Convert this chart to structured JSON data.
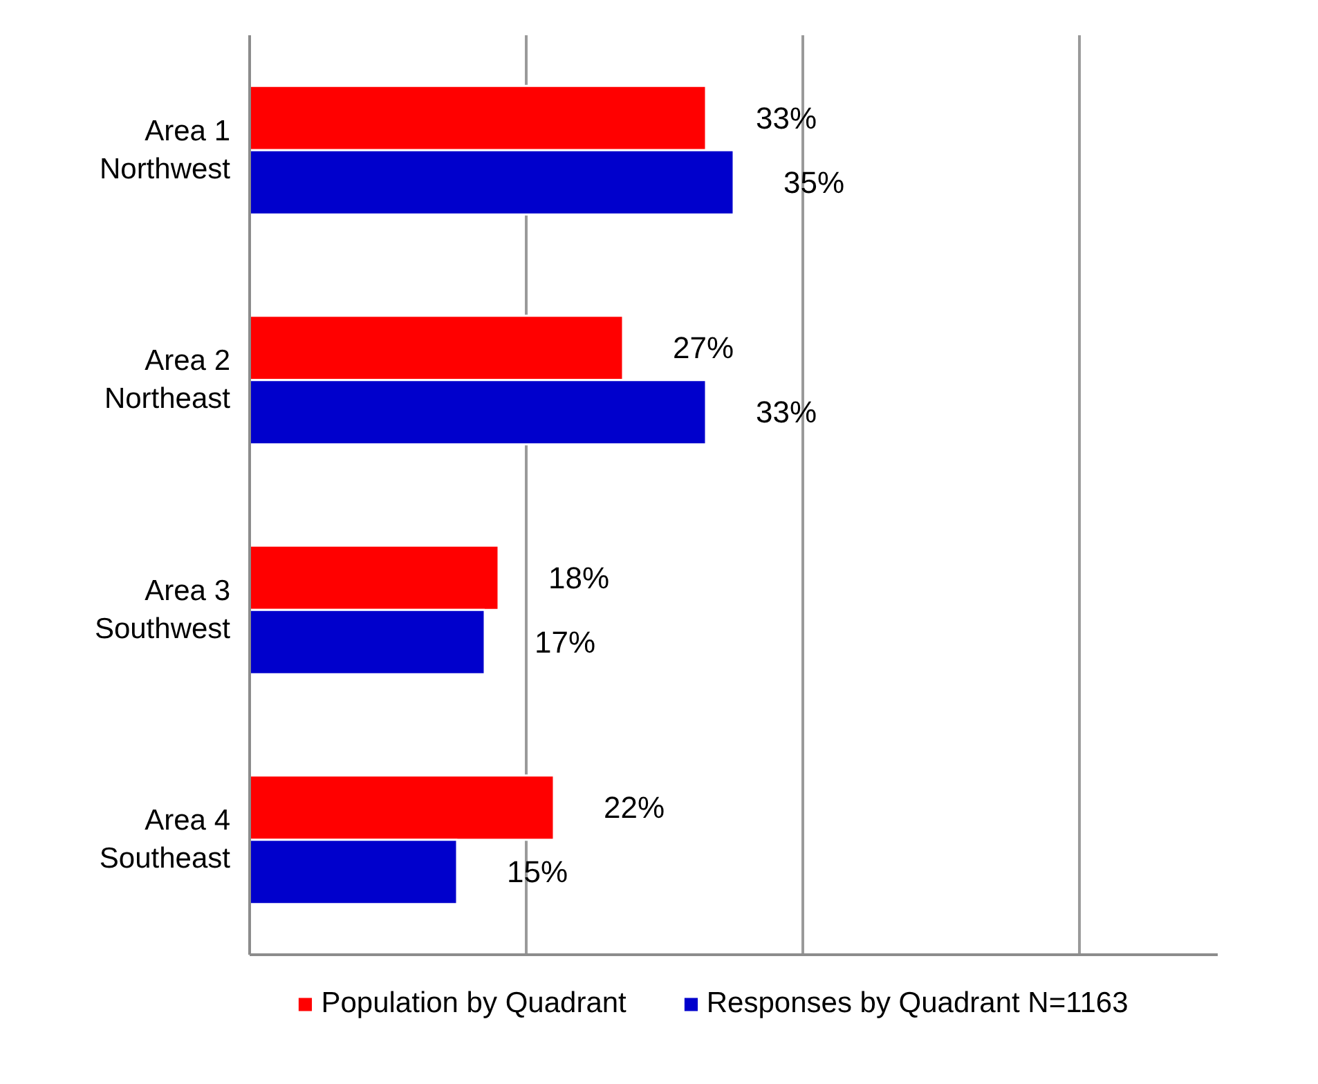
{
  "chart_data": {
    "type": "bar",
    "orientation": "horizontal",
    "categories": [
      "Area 1\nNorthwest",
      "Area 2\nNortheast",
      "Area 3\nSouthwest",
      "Area 4\nSoutheast"
    ],
    "series": [
      {
        "name": "Population by Quadrant",
        "color": "#ff0000",
        "values": [
          33,
          27,
          18,
          22
        ],
        "value_labels": [
          "33%",
          "27%",
          "18%",
          "22%"
        ]
      },
      {
        "name": "Responses by Quadrant N=1163",
        "color": "#0000cc",
        "values": [
          35,
          33,
          17,
          15
        ],
        "value_labels": [
          "35%",
          "33%",
          "17%",
          "15%"
        ]
      }
    ],
    "xlim": [
      0,
      70
    ],
    "xticks": [
      {
        "value": 0,
        "label": null
      },
      {
        "value": 20,
        "label": null
      },
      {
        "value": 40,
        "label": null
      },
      {
        "value": 60,
        "label": null
      }
    ],
    "tick_labels": "y",
    "grid": "x",
    "legend": "bottom"
  }
}
